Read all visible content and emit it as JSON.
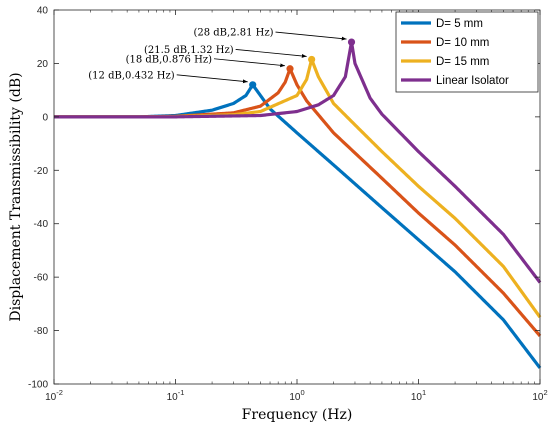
{
  "chart_data": {
    "type": "line",
    "title": "",
    "xlabel": "Frequency  (Hz)",
    "ylabel": "Displacement Transmissibility (dB)",
    "xscale": "log",
    "xlim": [
      0.01,
      100
    ],
    "ylim": [
      -100,
      40
    ],
    "grid": false,
    "legend_position": "top-right",
    "x_ticks": [
      {
        "value": 0.01,
        "base": "10",
        "exp": "-2"
      },
      {
        "value": 0.1,
        "base": "10",
        "exp": "-1"
      },
      {
        "value": 1,
        "base": "10",
        "exp": "0"
      },
      {
        "value": 10,
        "base": "10",
        "exp": "1"
      },
      {
        "value": 100,
        "base": "10",
        "exp": "2"
      }
    ],
    "y_ticks": [
      -100,
      -80,
      -60,
      -40,
      -20,
      0,
      20,
      40
    ],
    "y_tick_labels": [
      "-100",
      "-80",
      "-60",
      "-40",
      "-20",
      "0",
      "20",
      "40"
    ],
    "series": [
      {
        "name": "D= 5 mm",
        "color": "#0072BD",
        "x": [
          0.01,
          0.05,
          0.1,
          0.2,
          0.3,
          0.38,
          0.432,
          0.5,
          0.6,
          1,
          2,
          5,
          10,
          20,
          50,
          100
        ],
        "y": [
          0,
          0,
          0.5,
          2.5,
          5,
          8,
          12,
          8,
          3,
          -6,
          -18,
          -34,
          -46,
          -58,
          -76,
          -94
        ]
      },
      {
        "name": "D= 10 mm",
        "color": "#D95319",
        "x": [
          0.01,
          0.05,
          0.1,
          0.3,
          0.5,
          0.7,
          0.8,
          0.876,
          1,
          1.2,
          2,
          5,
          10,
          20,
          50,
          100
        ],
        "y": [
          0,
          0,
          0.2,
          1.5,
          4,
          9,
          13,
          18,
          12,
          6,
          -6,
          -23,
          -36,
          -48,
          -66,
          -82
        ]
      },
      {
        "name": "D= 15 mm",
        "color": "#EDB120",
        "x": [
          0.01,
          0.05,
          0.1,
          0.3,
          0.5,
          1,
          1.2,
          1.32,
          1.5,
          2,
          3,
          5,
          10,
          20,
          50,
          100
        ],
        "y": [
          0,
          0,
          0.1,
          0.8,
          2,
          8,
          14,
          21.5,
          15,
          5,
          -3,
          -13,
          -26,
          -38,
          -56,
          -75
        ]
      },
      {
        "name": "Linear Isolator",
        "color": "#7E2F8E",
        "x": [
          0.01,
          0.1,
          0.5,
          1,
          1.5,
          2,
          2.5,
          2.81,
          3,
          4,
          5,
          10,
          20,
          50,
          100
        ],
        "y": [
          0,
          0,
          0.5,
          2,
          4.5,
          8,
          15,
          28,
          20,
          7,
          1,
          -13,
          -26,
          -44,
          -62
        ]
      }
    ],
    "annotations": [
      {
        "text": "(12 dB,0.432 Hz)",
        "x": 0.432,
        "y": 12,
        "series": 0
      },
      {
        "text": "(18 dB,0.876 Hz)",
        "x": 0.876,
        "y": 18,
        "series": 1
      },
      {
        "text": "(21.5 dB,1.32 Hz)",
        "x": 1.32,
        "y": 21.5,
        "series": 2
      },
      {
        "text": "(28 dB,2.81 Hz)",
        "x": 2.81,
        "y": 28,
        "series": 3
      }
    ]
  }
}
